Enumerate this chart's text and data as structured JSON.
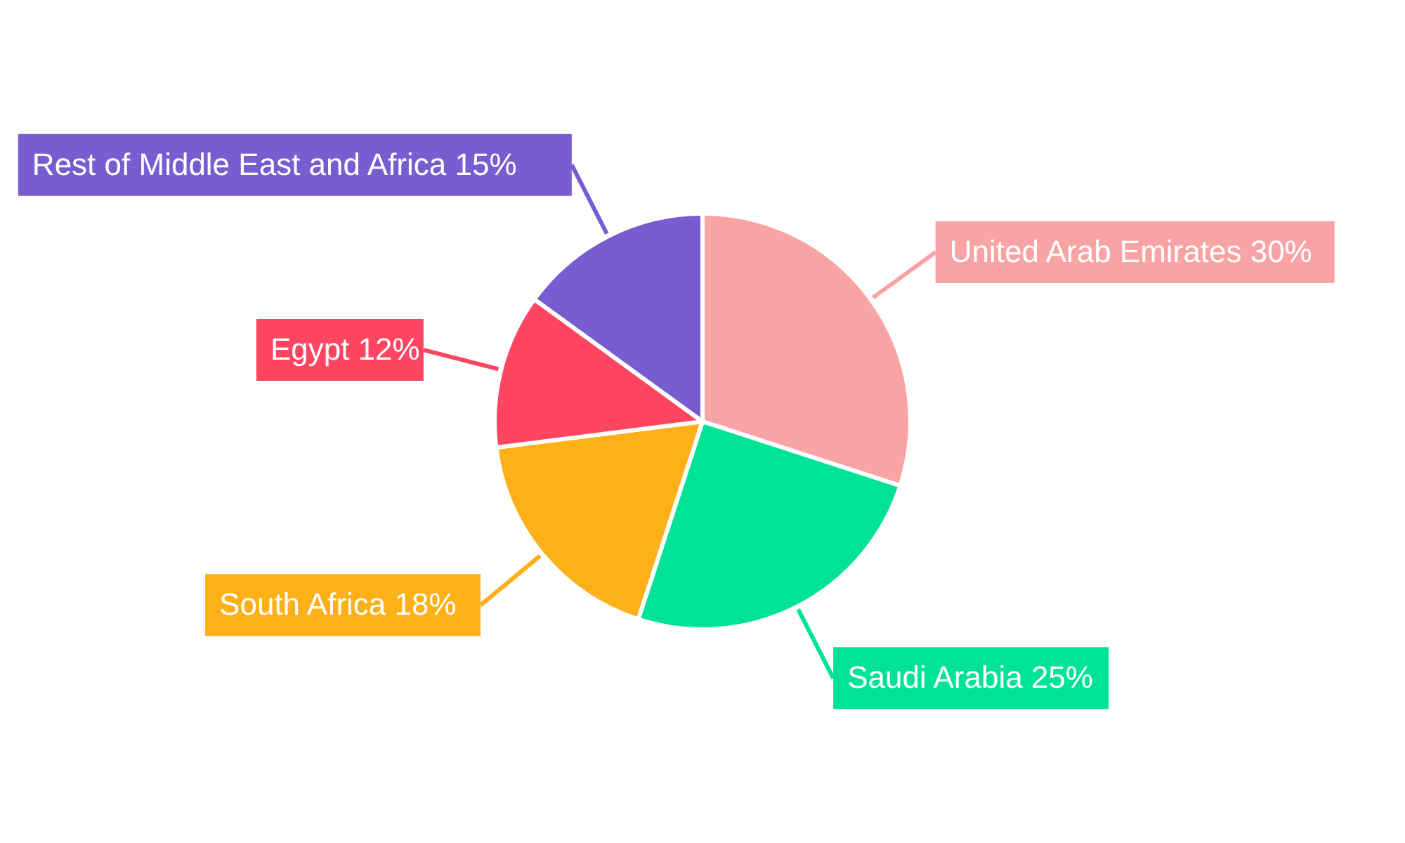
{
  "chart_data": {
    "type": "pie",
    "categories": [
      "United Arab Emirates",
      "Saudi Arabia",
      "South Africa",
      "Egypt",
      "Rest of Middle East and Africa"
    ],
    "values": [
      30,
      25,
      18,
      12,
      15
    ],
    "value_labels": [
      "30%",
      "25%",
      "18%",
      "12%",
      "15%"
    ],
    "colors": [
      "#f9a3a4",
      "#00e396",
      "#feb019",
      "#ff4560",
      "#775dd0"
    ]
  }
}
